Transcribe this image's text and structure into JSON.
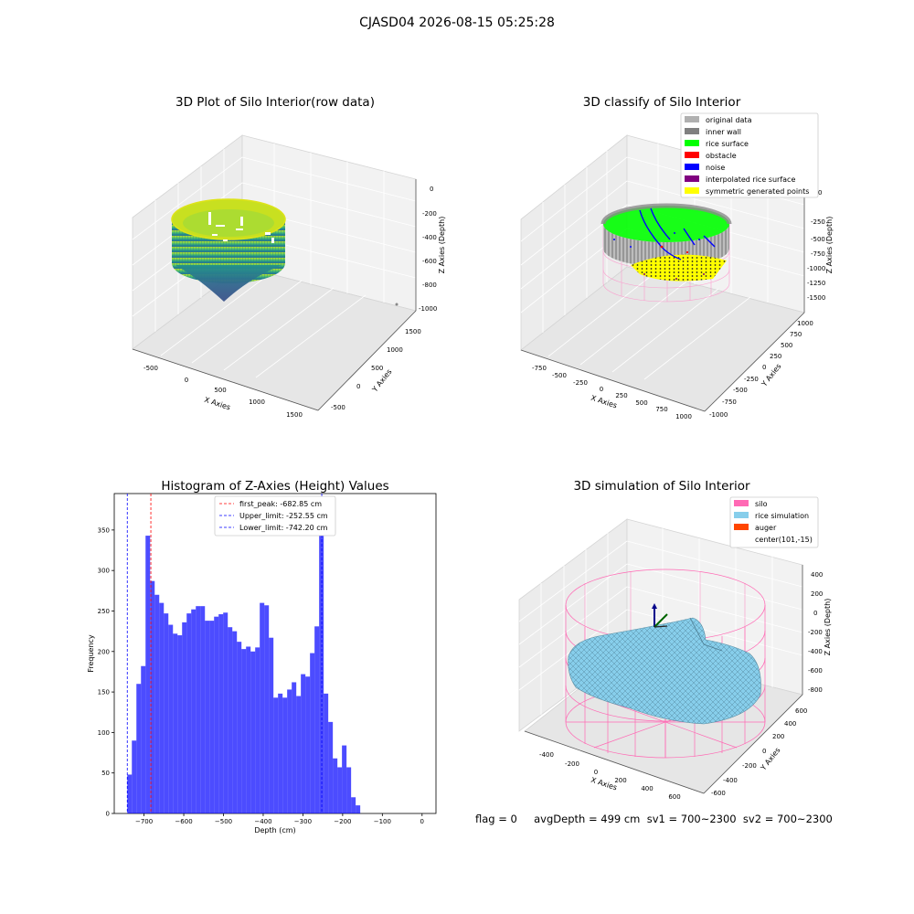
{
  "figure_title": "CJASD04 2026-08-15 05:25:28",
  "status_line": "flag = 0     avgDepth = 499 cm  sv1 = 700~2300  sv2 = 700~2300",
  "chart_data": [
    {
      "type": "scatter3d",
      "title": "3D Plot of Silo Interior(row data)",
      "xlabel": "X Axies",
      "ylabel": "Y Axies",
      "zlabel": "Z Axies (Depth)",
      "x_ticks": [
        "-500",
        "0",
        "500",
        "1000",
        "1500"
      ],
      "y_ticks": [
        "-500",
        "0",
        "500",
        "1000",
        "1500"
      ],
      "z_ticks": [
        "0",
        "-200",
        "-400",
        "-600",
        "-800",
        "-1000"
      ],
      "colormap": "viridis"
    },
    {
      "type": "scatter3d",
      "title": "3D classify of Silo Interior",
      "xlabel": "X Axies",
      "ylabel": "Y Axies",
      "zlabel": "Z Axies (Depth)",
      "x_ticks": [
        "-750",
        "-500",
        "-250",
        "0",
        "250",
        "500",
        "750",
        "1000"
      ],
      "y_ticks": [
        "-1000",
        "-750",
        "-500",
        "-250",
        "0",
        "250",
        "500",
        "750",
        "1000"
      ],
      "z_ticks": [
        "0",
        "-250",
        "-500",
        "-750",
        "-1000",
        "-1250",
        "-1500"
      ],
      "legend": [
        {
          "label": "original data",
          "color": "#b0b0b0"
        },
        {
          "label": "inner wall",
          "color": "#808080"
        },
        {
          "label": "rice surface",
          "color": "#00ff00"
        },
        {
          "label": "obstacle",
          "color": "#ff0000"
        },
        {
          "label": "noise",
          "color": "#0000ff"
        },
        {
          "label": "interpolated rice surface",
          "color": "#800080"
        },
        {
          "label": "symmetric generated points",
          "color": "#ffff00"
        }
      ]
    },
    {
      "type": "bar",
      "title": "Histogram of Z-Axies (Height) Values",
      "xlabel": "Depth (cm)",
      "ylabel": "Frequency",
      "bin_start": -742.2,
      "bin_width": 11.5,
      "values": [
        48,
        90,
        160,
        182,
        343,
        287,
        270,
        260,
        247,
        233,
        222,
        220,
        236,
        247,
        252,
        256,
        256,
        238,
        238,
        243,
        246,
        248,
        230,
        225,
        212,
        203,
        206,
        200,
        205,
        260,
        257,
        217,
        143,
        148,
        143,
        153,
        162,
        145,
        172,
        169,
        198,
        231,
        376,
        148,
        113,
        68,
        57,
        84,
        57,
        20,
        10
      ],
      "xlim": [
        -775,
        35
      ],
      "ylim": [
        0,
        395
      ],
      "x_ticks": [
        -700,
        -600,
        -500,
        -400,
        -300,
        -200,
        -100,
        0
      ],
      "y_ticks": [
        0,
        50,
        100,
        150,
        200,
        250,
        300,
        350
      ],
      "bar_color": "#0000ff",
      "vlines": [
        {
          "label": "first_peak: -682.85 cm",
          "x": -682.85,
          "color": "#ff0000"
        },
        {
          "label": "Upper_limit: -252.55 cm",
          "x": -252.55,
          "color": "#0000ff"
        },
        {
          "label": "Lower_limit: -742.20 cm",
          "x": -742.2,
          "color": "#0000ff"
        }
      ],
      "legend_position": "upper center"
    },
    {
      "type": "surface3d",
      "title": "3D simulation of Silo Interior",
      "xlabel": "X Axies",
      "ylabel": "Y Axies",
      "zlabel": "Z Axies (Depth)",
      "x_ticks": [
        "-400",
        "-200",
        "0",
        "200",
        "400",
        "600"
      ],
      "y_ticks": [
        "-600",
        "-400",
        "-200",
        "0",
        "200",
        "400",
        "600"
      ],
      "z_ticks": [
        "400",
        "200",
        "0",
        "-200",
        "-400",
        "-600",
        "-800"
      ],
      "legend": [
        {
          "label": "silo",
          "color": "#ff69b4"
        },
        {
          "label": "rice simulation",
          "color": "#87ceeb"
        },
        {
          "label": "auger",
          "color": "#ff4500"
        },
        {
          "label": "center(101,-15)",
          "color": ""
        }
      ]
    }
  ]
}
